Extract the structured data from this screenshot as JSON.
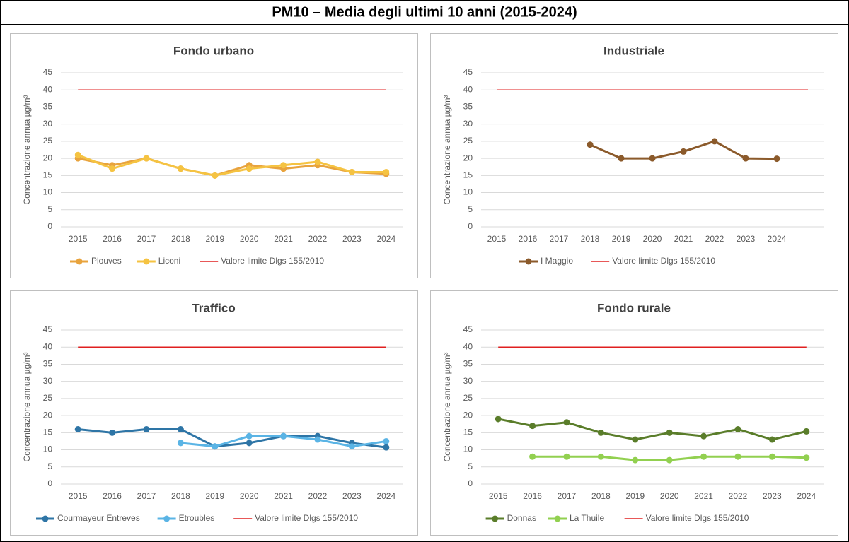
{
  "title": "PM10 – Media degli ultimi 10 anni (2015-2024)",
  "chart_data": [
    {
      "type": "line",
      "title": "Fondo urbano",
      "y_label": "Concentrazione annua µg/m³",
      "categories": [
        "2015",
        "2016",
        "2017",
        "2018",
        "2019",
        "2020",
        "2021",
        "2022",
        "2023",
        "2024"
      ],
      "ylim": [
        0,
        45
      ],
      "yticks": [
        0,
        5,
        10,
        15,
        20,
        25,
        30,
        35,
        40,
        45
      ],
      "grid": true,
      "series": [
        {
          "name": "Plouves",
          "color": "#e8a33d",
          "markers": true,
          "values": [
            20,
            18,
            20,
            17,
            15,
            18,
            17,
            18,
            16,
            15.5
          ]
        },
        {
          "name": "Liconi",
          "color": "#f5c342",
          "markers": true,
          "values": [
            21,
            17,
            20,
            17,
            15,
            17,
            18,
            19,
            16,
            16
          ]
        },
        {
          "name": "Valore limite Dlgs 155/2010",
          "color": "#e02020",
          "markers": false,
          "values": [
            40,
            40,
            40,
            40,
            40,
            40,
            40,
            40,
            40,
            40
          ]
        }
      ]
    },
    {
      "type": "line",
      "title": "Industriale",
      "y_label": "Concentrazione annua µg/m³",
      "categories": [
        "2015",
        "2016",
        "2017",
        "2018",
        "2019",
        "2020",
        "2021",
        "2022",
        "2023",
        "2024",
        null
      ],
      "ylim": [
        0,
        45
      ],
      "yticks": [
        0,
        5,
        10,
        15,
        20,
        25,
        30,
        35,
        40,
        45
      ],
      "grid": true,
      "series": [
        {
          "name": "I Maggio",
          "color": "#8b5a2b",
          "markers": true,
          "values": [
            null,
            null,
            null,
            24,
            20,
            20,
            22,
            25,
            20,
            19.9,
            null
          ]
        },
        {
          "name": "Valore limite Dlgs 155/2010",
          "color": "#e02020",
          "markers": false,
          "values": [
            40,
            40,
            40,
            40,
            40,
            40,
            40,
            40,
            40,
            40,
            40
          ]
        }
      ]
    },
    {
      "type": "line",
      "title": "Traffico",
      "y_label": "Concentrazione annua µg/m³",
      "categories": [
        "2015",
        "2016",
        "2017",
        "2018",
        "2019",
        "2020",
        "2021",
        "2022",
        "2023",
        "2024"
      ],
      "ylim": [
        0,
        45
      ],
      "yticks": [
        0,
        5,
        10,
        15,
        20,
        25,
        30,
        35,
        40,
        45
      ],
      "grid": true,
      "series": [
        {
          "name": "Courmayeur Entreves",
          "color": "#2e75a6",
          "markers": true,
          "values": [
            16,
            15,
            16,
            16,
            11,
            12,
            14,
            14,
            12,
            10.7
          ]
        },
        {
          "name": "Etroubles",
          "color": "#5ab4e5",
          "markers": true,
          "values": [
            null,
            null,
            null,
            12,
            11,
            14,
            14,
            13,
            11,
            12.5
          ]
        },
        {
          "name": "Valore limite Dlgs 155/2010",
          "color": "#e02020",
          "markers": false,
          "values": [
            40,
            40,
            40,
            40,
            40,
            40,
            40,
            40,
            40,
            40
          ]
        }
      ]
    },
    {
      "type": "line",
      "title": "Fondo rurale",
      "y_label": "Concentrazione annua µg/m³",
      "categories": [
        "2015",
        "2016",
        "2017",
        "2018",
        "2019",
        "2020",
        "2021",
        "2022",
        "2023",
        "2024"
      ],
      "ylim": [
        0,
        45
      ],
      "yticks": [
        0,
        5,
        10,
        15,
        20,
        25,
        30,
        35,
        40,
        45
      ],
      "grid": true,
      "series": [
        {
          "name": "Donnas",
          "color": "#5a7d2a",
          "markers": true,
          "values": [
            19,
            17,
            18,
            15,
            13,
            15,
            14,
            16,
            13,
            15.4
          ]
        },
        {
          "name": "La Thuile",
          "color": "#92d050",
          "markers": true,
          "values": [
            null,
            8,
            8,
            8,
            7,
            7,
            8,
            8,
            8,
            7.7
          ]
        },
        {
          "name": "Valore limite Dlgs 155/2010",
          "color": "#e02020",
          "markers": false,
          "values": [
            40,
            40,
            40,
            40,
            40,
            40,
            40,
            40,
            40,
            40
          ]
        }
      ]
    }
  ]
}
